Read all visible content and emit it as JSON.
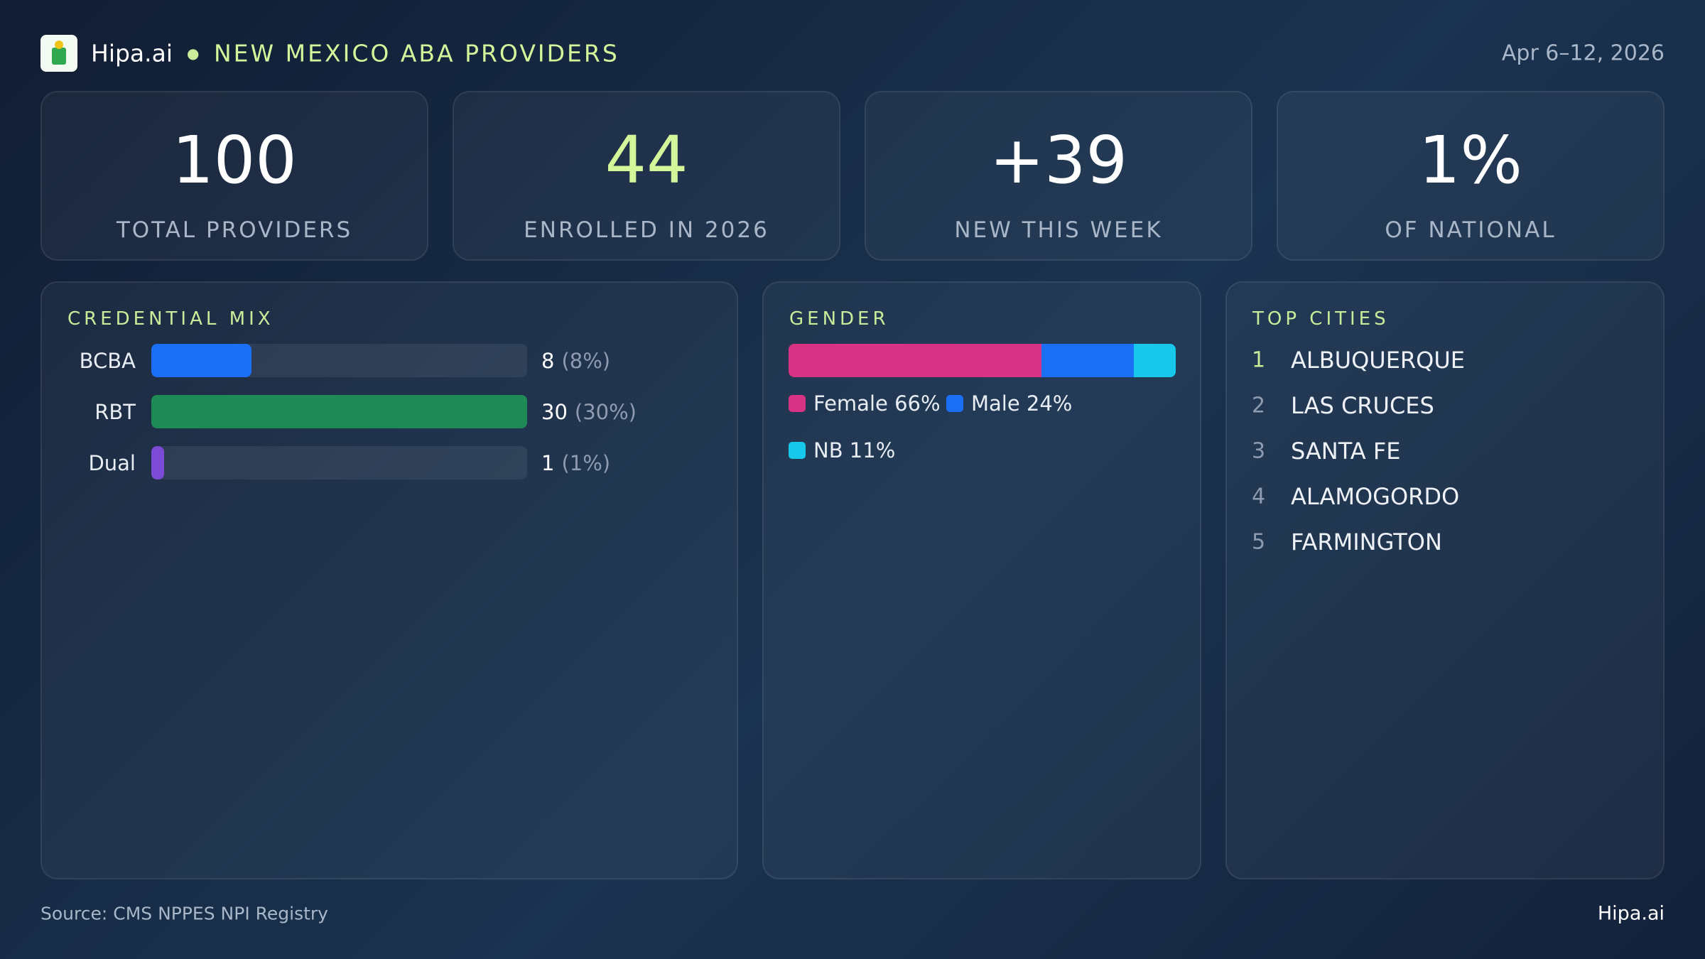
{
  "header": {
    "brand": "Hipa.ai",
    "title": "NEW MEXICO ABA PROVIDERS",
    "date": "Apr 6–12, 2026"
  },
  "kpis": [
    {
      "value": "100",
      "label": "TOTAL PROVIDERS",
      "color": "#ffffff"
    },
    {
      "value": "44",
      "label": "ENROLLED IN 2026",
      "color": "#d4f59a"
    },
    {
      "value": "+39",
      "label": "NEW THIS WEEK",
      "color": "#ffffff"
    },
    {
      "value": "1%",
      "label": "OF NATIONAL",
      "color": "#ffffff"
    }
  ],
  "credential_mix": {
    "title": "CREDENTIAL MIX",
    "categories": [
      "BCBA",
      "RBT",
      "Dual"
    ],
    "values": [
      8,
      30,
      1
    ],
    "percent_labels": [
      "(8%)",
      "(30%)",
      "(1%)"
    ],
    "colors": [
      "#1a6ff5",
      "#1e8a55",
      "#7b4bd6"
    ]
  },
  "gender": {
    "title": "GENDER",
    "series": [
      {
        "name": "Female",
        "value": 66,
        "label": "Female 66%",
        "color": "#d63384"
      },
      {
        "name": "Male",
        "value": 24,
        "label": "Male 24%",
        "color": "#1a6ff5"
      },
      {
        "name": "NB",
        "value": 11,
        "label": "NB 11%",
        "color": "#17c8ea"
      }
    ]
  },
  "top_cities": {
    "title": "TOP CITIES",
    "items": [
      {
        "rank": 1,
        "name": "ALBUQUERQUE"
      },
      {
        "rank": 2,
        "name": "LAS CRUCES"
      },
      {
        "rank": 3,
        "name": "SANTA FE"
      },
      {
        "rank": 4,
        "name": "ALAMOGORDO"
      },
      {
        "rank": 5,
        "name": "FARMINGTON"
      }
    ]
  },
  "footer": {
    "source": "Source: CMS NPPES NPI Registry",
    "brand": "Hipa.ai"
  }
}
